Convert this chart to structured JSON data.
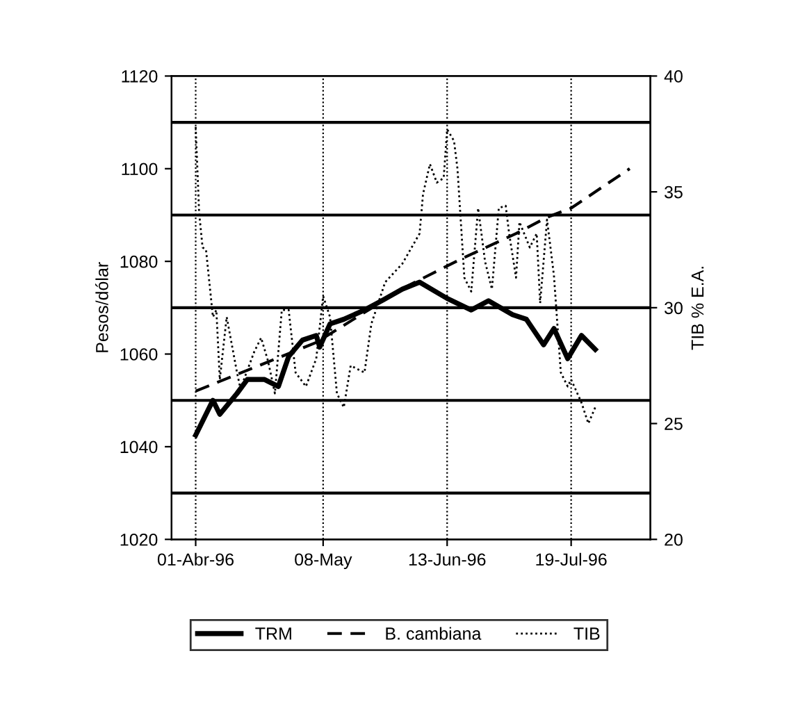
{
  "chart_data": {
    "type": "line",
    "ylabel": "Pesos/dólar",
    "y2label": "TIB % E.A.",
    "xlim": [
      "1996-03-25",
      "1996-08-11"
    ],
    "xticks": [
      {
        "value": "1996-04-01",
        "label": "01-Abr-96"
      },
      {
        "value": "1996-05-08",
        "label": "08-May"
      },
      {
        "value": "1996-06-13",
        "label": "13-Jun-96"
      },
      {
        "value": "1996-07-19",
        "label": "19-Jul-96"
      }
    ],
    "ylim": [
      1020,
      1120
    ],
    "yticks": [
      1020,
      1040,
      1060,
      1080,
      1100,
      1120
    ],
    "y2lim": [
      20,
      40
    ],
    "y2ticks": [
      20,
      25,
      30,
      35,
      40
    ],
    "grid": "x",
    "legend": "bottom",
    "ref_lines": [
      {
        "axis": "y",
        "value": 1030,
        "color": "#000000",
        "line_style": "solid"
      },
      {
        "axis": "y",
        "value": 1050,
        "color": "#000000",
        "line_style": "solid"
      },
      {
        "axis": "y",
        "value": 1070,
        "color": "#000000",
        "line_style": "solid"
      },
      {
        "axis": "y",
        "value": 1090,
        "color": "#000000",
        "line_style": "solid"
      },
      {
        "axis": "y",
        "value": 1110,
        "color": "#000000",
        "line_style": "solid"
      }
    ],
    "series": [
      {
        "name": "TRM",
        "color": "#000000",
        "line_style": "solid",
        "x": [
          "1996-04-01",
          "1996-04-06",
          "1996-04-08",
          "1996-04-13",
          "1996-04-16",
          "1996-04-21",
          "1996-04-25",
          "1996-04-28",
          "1996-05-02",
          "1996-05-06",
          "1996-05-07",
          "1996-05-10",
          "1996-05-14",
          "1996-05-20",
          "1996-05-25",
          "1996-05-31",
          "1996-06-05",
          "1996-06-13",
          "1996-06-20",
          "1996-06-25",
          "1996-07-02",
          "1996-07-06",
          "1996-07-11",
          "1996-07-14",
          "1996-07-18",
          "1996-07-22",
          "1996-07-26"
        ],
        "values": [
          1042.5,
          1050,
          1047,
          1051.5,
          1054.5,
          1054.5,
          1053,
          1059.5,
          1063,
          1064,
          1061.5,
          1066.5,
          1067.5,
          1069.5,
          1071.5,
          1074,
          1075.5,
          1072,
          1069.5,
          1071.5,
          1068.5,
          1067.5,
          1062,
          1065.5,
          1059,
          1064,
          1061
        ]
      },
      {
        "name": "B. cambiana",
        "color": "#000000",
        "line_style": "dashed",
        "x": [
          "1996-04-01",
          "1996-05-06",
          "1996-06-01",
          "1996-06-17",
          "1996-07-03",
          "1996-07-12",
          "1996-07-19",
          "1996-07-27",
          "1996-08-05"
        ],
        "values": [
          1052,
          1062.5,
          1074.5,
          1080.5,
          1086,
          1089.5,
          1091.5,
          1095.5,
          1100
        ]
      },
      {
        "name": "TIB",
        "color": "#000000",
        "line_style": "dotted",
        "axis": "y2",
        "x": [
          "1996-04-01",
          "1996-04-02",
          "1996-04-03",
          "1996-04-04",
          "1996-04-06",
          "1996-04-07",
          "1996-04-08",
          "1996-04-10",
          "1996-04-13",
          "1996-04-14",
          "1996-04-18",
          "1996-04-20",
          "1996-04-22",
          "1996-04-24",
          "1996-04-26",
          "1996-04-28",
          "1996-04-30",
          "1996-05-03",
          "1996-05-06",
          "1996-05-08",
          "1996-05-10",
          "1996-05-12",
          "1996-05-14",
          "1996-05-16",
          "1996-05-20",
          "1996-05-22",
          "1996-05-26",
          "1996-05-31",
          "1996-06-05",
          "1996-06-06",
          "1996-06-08",
          "1996-06-10",
          "1996-06-12",
          "1996-06-13",
          "1996-06-15",
          "1996-06-16",
          "1996-06-18",
          "1996-06-20",
          "1996-06-22",
          "1996-06-24",
          "1996-06-26",
          "1996-06-28",
          "1996-06-30",
          "1996-07-01",
          "1996-07-03",
          "1996-07-04",
          "1996-07-07",
          "1996-07-09",
          "1996-07-10",
          "1996-07-12",
          "1996-07-14",
          "1996-07-16",
          "1996-07-18",
          "1996-07-19",
          "1996-07-22",
          "1996-07-24",
          "1996-07-26"
        ],
        "values": [
          37.8,
          34.1,
          32.6,
          32.5,
          29.6,
          29.9,
          26.9,
          29.6,
          27.2,
          26.5,
          28.1,
          28.7,
          27.7,
          26.3,
          29.9,
          29.9,
          27.2,
          26.6,
          27.8,
          30.5,
          29.6,
          26.3,
          25.7,
          27.5,
          27.2,
          29.3,
          31.1,
          31.9,
          33.2,
          34.9,
          36.2,
          35.4,
          35.6,
          37.7,
          37.2,
          36.0,
          31.3,
          30.7,
          34.3,
          32.0,
          30.8,
          34.3,
          34.4,
          33.2,
          31.3,
          33.7,
          32.6,
          33.2,
          30.2,
          33.8,
          31.4,
          27.2,
          26.6,
          26.9,
          25.9,
          25.0,
          25.7
        ]
      }
    ]
  }
}
